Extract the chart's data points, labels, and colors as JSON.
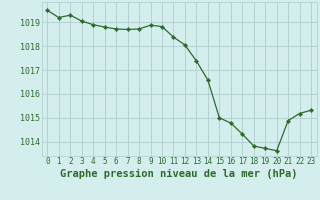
{
  "x": [
    0,
    1,
    2,
    3,
    4,
    5,
    6,
    7,
    8,
    9,
    10,
    11,
    12,
    13,
    14,
    15,
    16,
    17,
    18,
    19,
    20,
    21,
    22,
    23
  ],
  "y": [
    1019.5,
    1019.2,
    1019.3,
    1019.05,
    1018.9,
    1018.8,
    1018.72,
    1018.7,
    1018.72,
    1018.88,
    1018.82,
    1018.38,
    1018.05,
    1017.38,
    1016.58,
    1015.0,
    1014.78,
    1014.32,
    1013.82,
    1013.72,
    1013.62,
    1014.88,
    1015.18,
    1015.32
  ],
  "line_color": "#2d6a2d",
  "marker": "D",
  "marker_size": 2.2,
  "bg_color": "#d4eeed",
  "grid_color": "#b0cccc",
  "xlabel": "Graphe pression niveau de la mer (hPa)",
  "xlabel_color": "#2d6a2d",
  "tick_color": "#2d6a2d",
  "ylim": [
    1013.4,
    1019.85
  ],
  "xlim": [
    -0.5,
    23.5
  ],
  "yticks": [
    1014,
    1015,
    1016,
    1017,
    1018,
    1019
  ],
  "xtick_labels": [
    "0",
    "1",
    "2",
    "3",
    "4",
    "5",
    "6",
    "7",
    "8",
    "9",
    "10",
    "11",
    "12",
    "13",
    "14",
    "15",
    "16",
    "17",
    "18",
    "19",
    "20",
    "21",
    "22",
    "23"
  ],
  "xlabel_fontsize": 7.5,
  "ytick_fontsize": 6.0,
  "xtick_fontsize": 5.5,
  "linewidth": 0.9
}
